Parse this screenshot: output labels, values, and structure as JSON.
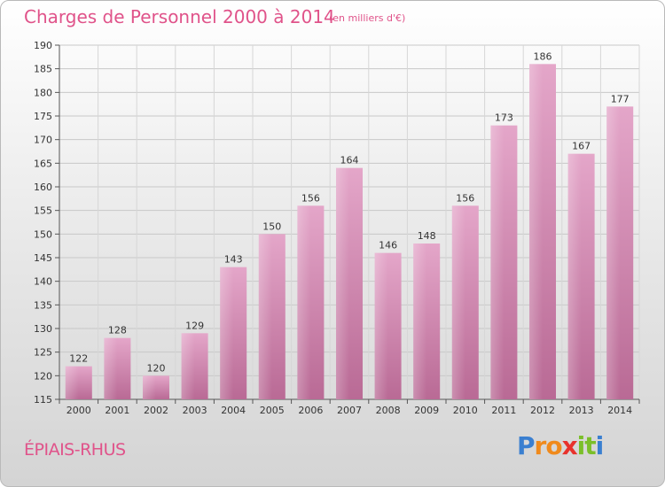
{
  "header": {
    "title": "Charges de Personnel 2000 à 2014",
    "unit": "(en milliers d'€)"
  },
  "footer": {
    "commune": "ÉPIAIS-RHUS",
    "logo_letters": [
      "P",
      "r",
      "o",
      "x",
      "i",
      "t",
      "i"
    ],
    "logo_colors": [
      "#3a7fd0",
      "#f08a1c",
      "#f08a1c",
      "#e8322c",
      "#7bbf2a",
      "#7bbf2a",
      "#3a7fd0"
    ]
  },
  "chart_data": {
    "type": "bar",
    "title": "Charges de Personnel 2000 à 2014",
    "subtitle": "(en milliers d'€)",
    "categories": [
      "2000",
      "2001",
      "2002",
      "2003",
      "2004",
      "2005",
      "2006",
      "2007",
      "2008",
      "2009",
      "2010",
      "2011",
      "2012",
      "2013",
      "2014"
    ],
    "values": [
      122,
      128,
      120,
      129,
      143,
      150,
      156,
      164,
      146,
      148,
      156,
      173,
      186,
      167,
      177
    ],
    "ylim": [
      115,
      190
    ],
    "yticks": [
      115,
      120,
      125,
      130,
      135,
      140,
      145,
      150,
      155,
      160,
      165,
      170,
      175,
      180,
      185,
      190
    ],
    "grid": true,
    "bar_color": "#d27fab"
  }
}
